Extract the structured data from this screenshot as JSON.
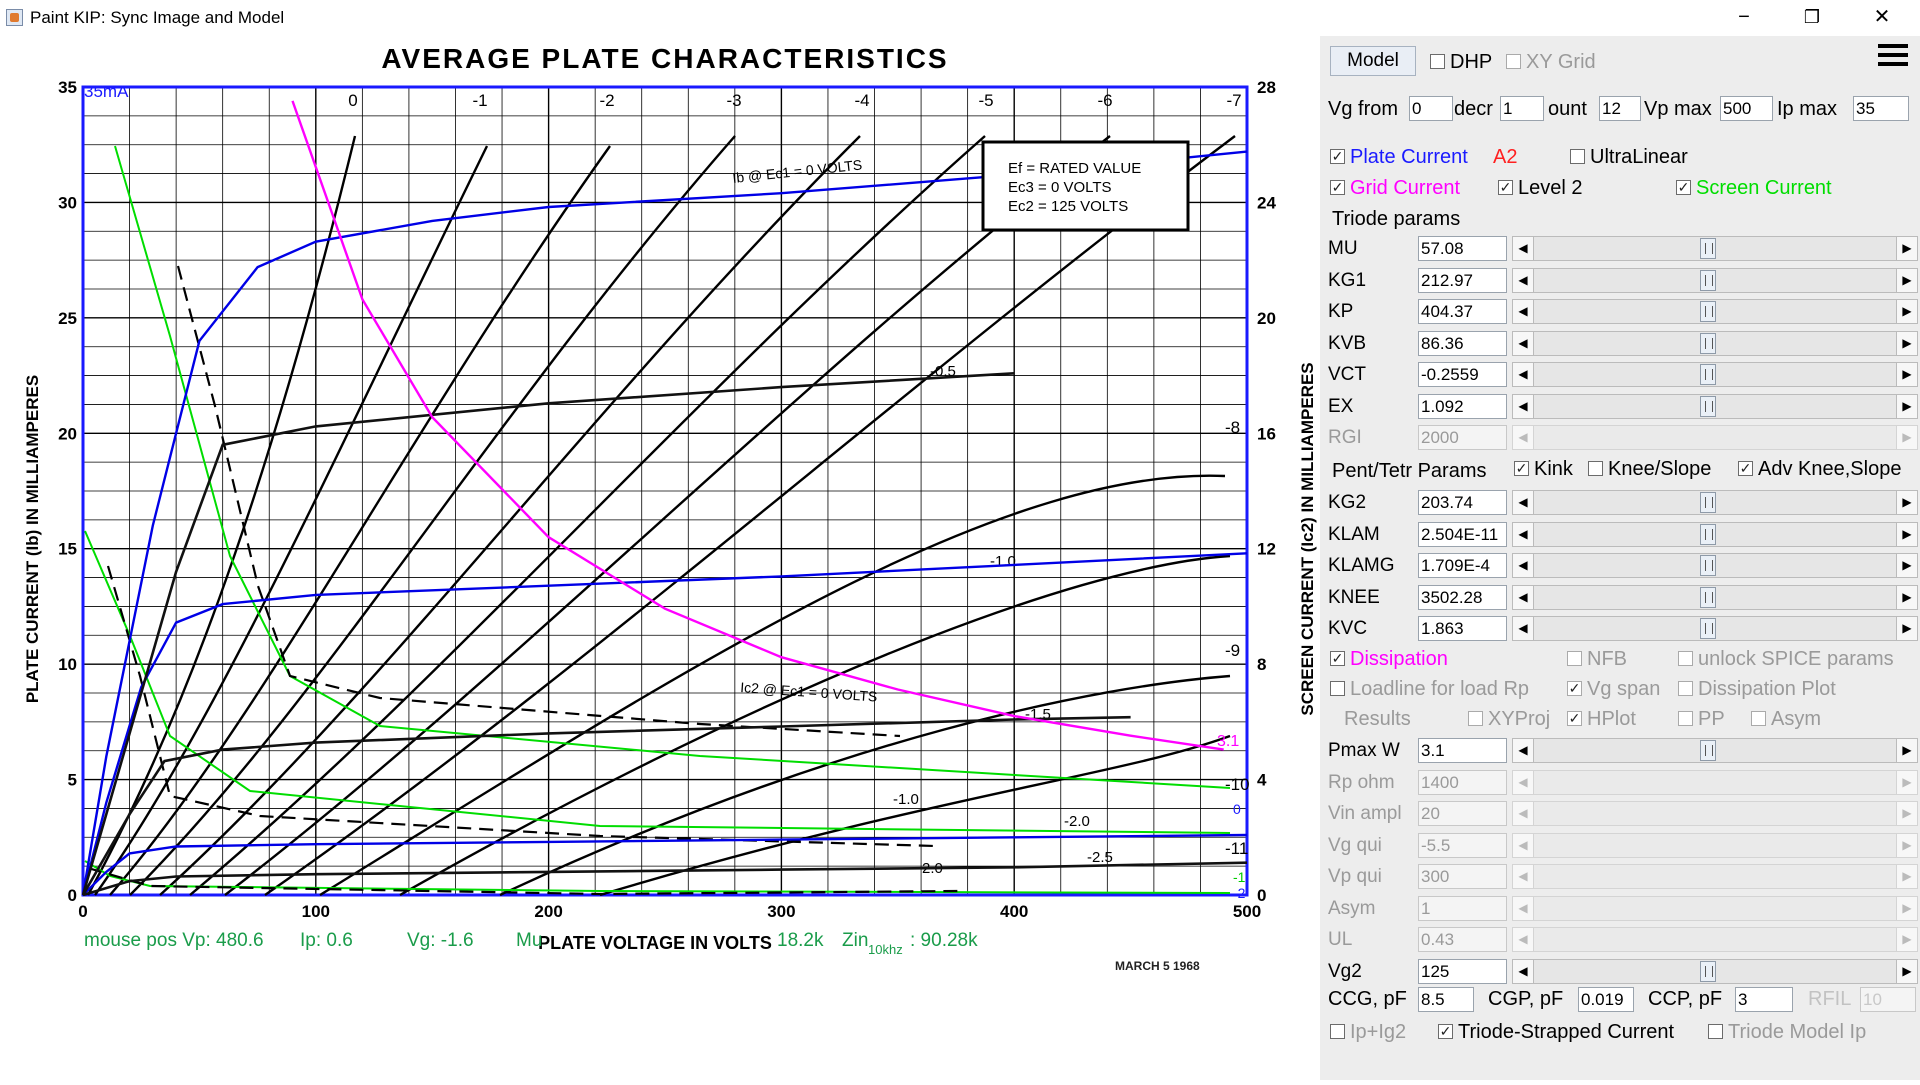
{
  "window": {
    "title": "Paint KIP: Sync Image and Model",
    "minimize": "−",
    "maximize": "❐",
    "close": "✕"
  },
  "plot": {
    "title": "AVERAGE PLATE CHARACTERISTICS",
    "ylabel_left": "PLATE CURRENT (Ib) IN MILLIAMPERES",
    "ylabel_right": "SCREEN CURRENT (Ic2) IN MILLIAMPERES",
    "xlabel": "PLATE VOLTAGE IN VOLTS",
    "x_ticks": [
      "0",
      "100",
      "200",
      "300",
      "400",
      "500"
    ],
    "y_left_ticks": [
      "0",
      "5",
      "10",
      "15",
      "20",
      "25",
      "30",
      "35"
    ],
    "y_right_ticks": [
      "0",
      "4",
      "8",
      "12",
      "16",
      "20",
      "24",
      "28"
    ],
    "top_left_label": "35mA",
    "info_box": [
      "Ef = RATED VALUE",
      "Ec3 = 0 VOLTS",
      "Ec2 = 125 VOLTS"
    ],
    "annotation_ib": "Ib @ Ec1 = 0 VOLTS",
    "annotation_ic2": "Ic2 @ Ec1 = 0 VOLTS",
    "top_grid_labels": [
      "0",
      "-1",
      "-2",
      "-3",
      "-4",
      "-5",
      "-6",
      "-7"
    ],
    "right_grid_labels": [
      "-8",
      "-9",
      "-10",
      "-11"
    ],
    "curve_labels": [
      "-0.5",
      "-1.0",
      "-1.5",
      "-1.0",
      "-2.0",
      "-2.0",
      "-2.5"
    ],
    "dissipation_label": "3.1",
    "right_colored_labels": [
      "0",
      "-1",
      "-2"
    ],
    "date_fragment": "MARCH 5 1968",
    "status": {
      "mouse_pos": "mouse pos Vp: 480.6",
      "ip": "Ip: 0.6",
      "vg": "Vg: -1.6",
      "mu_fragment": "Mu",
      "rp": "18.2k",
      "zin_label": "Zin",
      "zin_sub": "10khz",
      "zin_value": ": 90.28k"
    }
  },
  "chart_data": {
    "type": "line",
    "title": "AVERAGE PLATE CHARACTERISTICS",
    "xlabel": "PLATE VOLTAGE IN VOLTS",
    "ylabel": "PLATE CURRENT (Ib) IN MILLIAMPERES",
    "ylabel_right": "SCREEN CURRENT (Ic2) IN MILLIAMPERES",
    "xlim": [
      0,
      500
    ],
    "ylim": [
      0,
      35
    ],
    "ylim_right": [
      0,
      28
    ],
    "grid": true,
    "series": [
      {
        "name": "0",
        "color": "#0000e6",
        "x": [
          0,
          10,
          30,
          50,
          75,
          100,
          150,
          200,
          300,
          400,
          500
        ],
        "y": [
          0,
          6,
          16,
          24,
          27.2,
          28.3,
          29.2,
          29.8,
          30.4,
          31.2,
          32.2
        ]
      },
      {
        "name": "-1",
        "color": "#0000e6",
        "x": [
          0,
          10,
          25,
          40,
          60,
          100,
          200,
          300,
          400,
          500
        ],
        "y": [
          0,
          4,
          9,
          11.8,
          12.6,
          13,
          13.4,
          13.8,
          14.3,
          14.8
        ]
      },
      {
        "name": "-2",
        "color": "#0000e6",
        "x": [
          0,
          10,
          20,
          40,
          100,
          200,
          300,
          400,
          500
        ],
        "y": [
          0,
          1,
          1.8,
          2.1,
          2.2,
          2.3,
          2.4,
          2.5,
          2.6
        ]
      },
      {
        "name": "-0.5",
        "color": "#111111",
        "x": [
          0,
          20,
          40,
          60,
          100,
          200,
          300,
          400
        ],
        "y": [
          0,
          7,
          14,
          19.5,
          20.3,
          21.3,
          22,
          22.6
        ]
      },
      {
        "name": "-1.5",
        "color": "#111111",
        "x": [
          0,
          20,
          35,
          60,
          100,
          200,
          300,
          400,
          450
        ],
        "y": [
          0,
          3.5,
          5.8,
          6.3,
          6.6,
          7,
          7.3,
          7.6,
          7.7
        ]
      },
      {
        "name": "-2.5",
        "color": "#111111",
        "x": [
          0,
          20,
          40,
          100,
          200,
          300,
          400,
          500
        ],
        "y": [
          0,
          0.6,
          0.8,
          0.9,
          1.0,
          1.1,
          1.2,
          1.4
        ]
      },
      {
        "name": "3.1",
        "color": "#ff00ff",
        "x": [
          90,
          120,
          150,
          200,
          250,
          300,
          350,
          400,
          450,
          490
        ],
        "y": [
          34.4,
          25.8,
          20.7,
          15.5,
          12.4,
          10.3,
          8.9,
          7.75,
          6.9,
          6.3
        ]
      }
    ]
  },
  "panel": {
    "model_button": "Model",
    "dhp": "DHP",
    "xy_grid": "XY Grid",
    "vg_from_label": "Vg from",
    "vg_from": "0",
    "decr_label": "decr",
    "decr": "1",
    "count_label": "ount",
    "count": "12",
    "vp_max_label": "Vp max",
    "vp_max": "500",
    "ip_max_label": "Ip max",
    "ip_max": "35",
    "plate_current": "Plate Current",
    "a2": "A2",
    "ultralinear": "UltraLinear",
    "grid_current": "Grid Current",
    "level2": "Level 2",
    "screen_current": "Screen Current",
    "triode_params": "Triode params",
    "triode_rows": [
      {
        "label": "MU",
        "value": "57.08"
      },
      {
        "label": "KG1",
        "value": "212.97"
      },
      {
        "label": "KP",
        "value": "404.37"
      },
      {
        "label": "KVB",
        "value": "86.36"
      },
      {
        "label": "VCT",
        "value": "-0.2559"
      },
      {
        "label": "EX",
        "value": "1.092"
      },
      {
        "label": "RGI",
        "value": "2000"
      }
    ],
    "pent_params": "Pent/Tetr Params",
    "kink": "Kink",
    "knee_slope": "Knee/Slope",
    "adv_knee": "Adv Knee,Slope",
    "pent_rows": [
      {
        "label": "KG2",
        "value": "203.74"
      },
      {
        "label": "KLAM",
        "value": "2.504E-11"
      },
      {
        "label": "KLAMG",
        "value": "1.709E-4"
      },
      {
        "label": "KNEE",
        "value": "3502.28"
      },
      {
        "label": "KVC",
        "value": "1.863"
      }
    ],
    "dissipation": "Dissipation",
    "nfb": "NFB",
    "unlock_spice": "unlock SPICE params",
    "loadline": "Loadline for load Rp",
    "vg_span": "Vg span",
    "dissipation_plot": "Dissipation Plot",
    "results": "Results",
    "xyproj": "XYProj",
    "hplot": "HPlot",
    "pp": "PP",
    "asym_cb": "Asym",
    "lower_rows": [
      {
        "label": "Pmax W",
        "value": "3.1"
      },
      {
        "label": "Rp ohm",
        "value": "1400"
      },
      {
        "label": "Vin ampl",
        "value": "20"
      },
      {
        "label": "Vg qui",
        "value": "-5.5"
      },
      {
        "label": "Vp qui",
        "value": "300"
      },
      {
        "label": "Asym",
        "value": "1"
      },
      {
        "label": "UL",
        "value": "0.43"
      },
      {
        "label": "Vg2",
        "value": "125"
      }
    ],
    "ccg_label": "CCG, pF",
    "ccg": "8.5",
    "cgp_label": "CGP, pF",
    "cgp": "0.019",
    "ccp_label": "CCP, pF",
    "ccp": "3",
    "rfil_label": "RFIL",
    "rfil": "10",
    "ip_ig2": "Ip+Ig2",
    "triode_strapped": "Triode-Strapped Current",
    "triode_model_ip": "Triode Model Ip",
    "colors": {
      "plate_current": "#1a1aff",
      "a2": "#ff2020",
      "grid_current": "#ff00ff",
      "screen_current": "#00dd00"
    }
  }
}
